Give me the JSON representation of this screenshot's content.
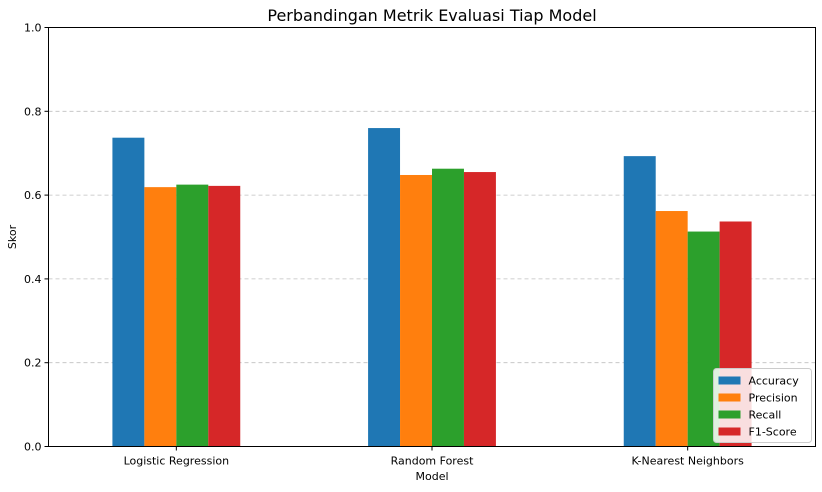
{
  "chart_data": {
    "type": "bar",
    "title": "Perbandingan Metrik Evaluasi Tiap Model",
    "xlabel": "Model",
    "ylabel": "Skor",
    "ylim": [
      0,
      1.0
    ],
    "yticks": [
      "0.0",
      "0.2",
      "0.4",
      "0.6",
      "0.8",
      "1.0"
    ],
    "ytick_values": [
      0,
      0.2,
      0.4,
      0.6,
      0.8,
      1.0
    ],
    "grid": "y-dashed",
    "legend_position": "bottom-right",
    "categories": [
      "Logistic Regression",
      "Random Forest",
      "K-Nearest Neighbors"
    ],
    "series": [
      {
        "name": "Accuracy",
        "color": "#1f77b4",
        "values": [
          0.737,
          0.76,
          0.693
        ]
      },
      {
        "name": "Precision",
        "color": "#ff7f0e",
        "values": [
          0.619,
          0.648,
          0.562
        ]
      },
      {
        "name": "Recall",
        "color": "#2ca02c",
        "values": [
          0.625,
          0.663,
          0.513
        ]
      },
      {
        "name": "F1-Score",
        "color": "#d62728",
        "values": [
          0.622,
          0.655,
          0.537
        ]
      }
    ]
  }
}
